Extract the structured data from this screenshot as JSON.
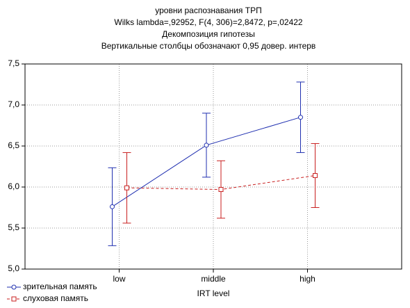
{
  "chart_data": {
    "type": "line",
    "title": [
      "уровни распознавания ТРП",
      "Wilks lambda=,92952, F(4, 306)=2,8472, p=,02422",
      "Декомпозиция гипотезы",
      "Вертикальные столбцы обозначают 0,95 довер. интерв"
    ],
    "x_label": "IRT level",
    "categories": [
      "low",
      "middle",
      "high"
    ],
    "series": [
      {
        "name": "зрительная память",
        "color": "#1f2fb0",
        "marker": "circle",
        "line_style": "solid",
        "values": [
          5.76,
          6.51,
          6.85
        ],
        "errors": [
          0.475,
          0.39,
          0.43
        ]
      },
      {
        "name": "слуховая память",
        "color": "#c81e1e",
        "marker": "square",
        "line_style": "dashed",
        "values": [
          5.99,
          5.97,
          6.14
        ],
        "errors": [
          0.43,
          0.35,
          0.39
        ]
      }
    ],
    "ylim": [
      5.0,
      7.5
    ],
    "yticks": [
      {
        "value": 5.0,
        "label": "5,0"
      },
      {
        "value": 5.5,
        "label": "5,5"
      },
      {
        "value": 6.0,
        "label": "6,0"
      },
      {
        "value": 6.5,
        "label": "6,5"
      },
      {
        "value": 7.0,
        "label": "7,0"
      },
      {
        "value": 7.5,
        "label": "7,5"
      }
    ],
    "grid": true,
    "legend": "bottom-left"
  }
}
